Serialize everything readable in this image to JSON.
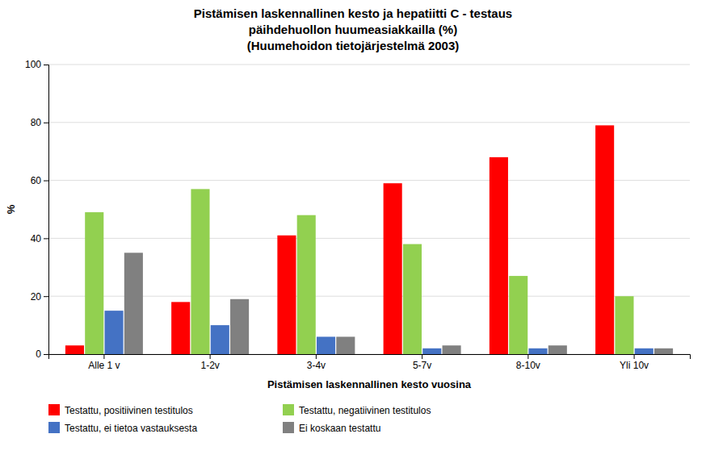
{
  "chart_data": {
    "type": "bar",
    "title": [
      "Pistämisen laskennallinen kesto ja hepatiitti C - testaus",
      "päihdehuollon huumeasiakkailla (%)",
      "(Huumehoidon tietojärjestelmä 2003)"
    ],
    "x_label": "Pistämisen laskennallinen kesto vuosina",
    "y_label": "%",
    "categories": [
      "Alle 1 v",
      "1-2v",
      "3-4v",
      "5-7v",
      "8-10v",
      "Yli 10v"
    ],
    "series": [
      {
        "name": "Testattu, positiivinen testitulos",
        "color": "#FF0000",
        "values": [
          3,
          18,
          41,
          59,
          68,
          79
        ]
      },
      {
        "name": "Testattu, negatiivinen testitulos",
        "color": "#92D050",
        "values": [
          49,
          57,
          48,
          38,
          27,
          20
        ]
      },
      {
        "name": "Testattu, ei tietoa vastauksesta",
        "color": "#4472C4",
        "values": [
          15,
          10,
          6,
          2,
          2,
          2
        ]
      },
      {
        "name": "Ei koskaan testattu",
        "color": "#808080",
        "values": [
          35,
          19,
          6,
          3,
          3,
          2
        ]
      }
    ],
    "ylim": [
      0,
      100
    ],
    "yticks": [
      0,
      20,
      40,
      60,
      80,
      100
    ],
    "grid": true,
    "legend": "bottom"
  }
}
